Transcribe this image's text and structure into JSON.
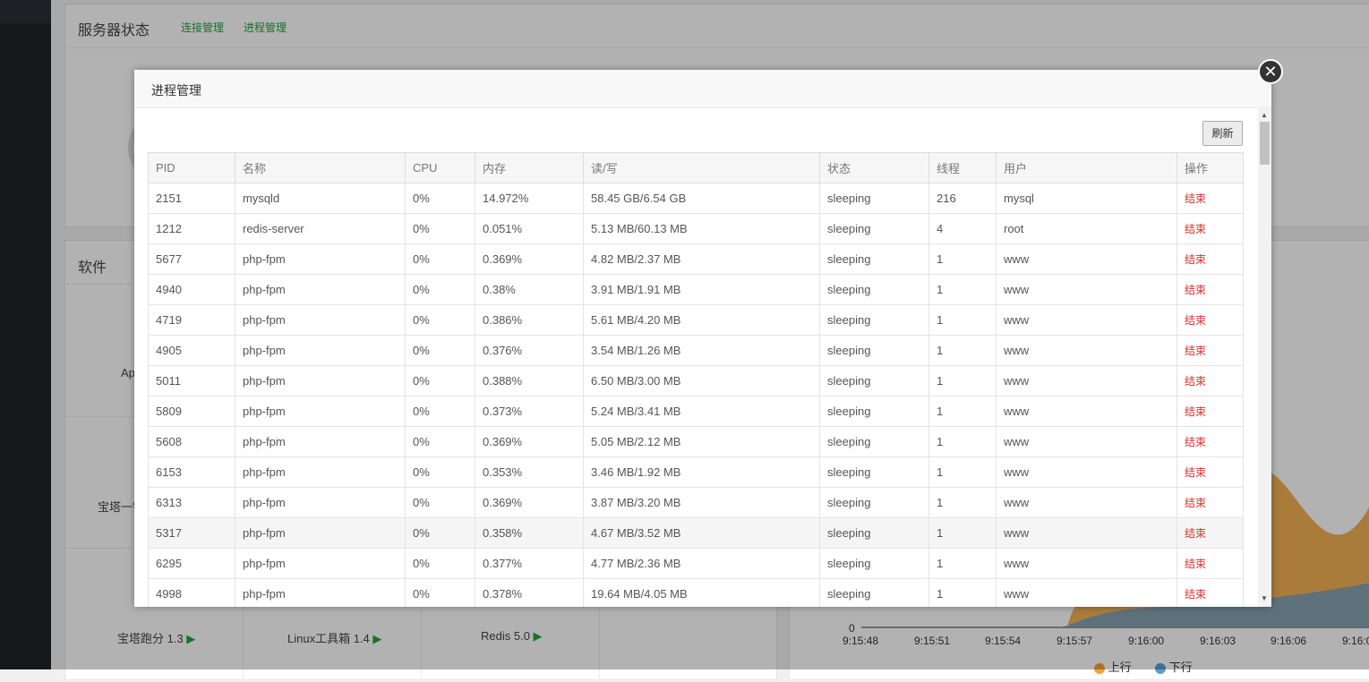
{
  "background": {
    "server_status_title": "服务器状态",
    "links": [
      "连接管理",
      "进程管理"
    ],
    "software_title": "软件",
    "software_items": [
      "宝塔跑分 1.3",
      "Linux工具箱 1.4",
      "Redis 5.0"
    ],
    "partial_labels": [
      "Ap",
      "宝塔一键"
    ],
    "chart": {
      "x_ticks": [
        "9:15:48",
        "9:15:51",
        "9:15:54",
        "9:15:57",
        "9:16:00",
        "9:16:03",
        "9:16:06",
        "9:16:0"
      ],
      "y_zero": "0",
      "legend": [
        "上行",
        "下行"
      ],
      "colors": {
        "up": "#f0a43a",
        "down": "#5b9bd5"
      }
    }
  },
  "modal": {
    "title": "进程管理",
    "refresh_label": "刷新",
    "close_icon": "close-icon",
    "columns": [
      "PID",
      "名称",
      "CPU",
      "内存",
      "读/写",
      "状态",
      "线程",
      "用户",
      "操作"
    ],
    "rows": [
      {
        "pid": "2151",
        "name": "mysqld",
        "cpu": "0%",
        "mem": "14.972%",
        "io": "58.45 GB/6.54 GB",
        "state": "sleeping",
        "threads": "216",
        "user": "mysql",
        "action": "结束"
      },
      {
        "pid": "1212",
        "name": "redis-server",
        "cpu": "0%",
        "mem": "0.051%",
        "io": "5.13 MB/60.13 MB",
        "state": "sleeping",
        "threads": "4",
        "user": "root",
        "action": "结束"
      },
      {
        "pid": "5677",
        "name": "php-fpm",
        "cpu": "0%",
        "mem": "0.369%",
        "io": "4.82 MB/2.37 MB",
        "state": "sleeping",
        "threads": "1",
        "user": "www",
        "action": "结束"
      },
      {
        "pid": "4940",
        "name": "php-fpm",
        "cpu": "0%",
        "mem": "0.38%",
        "io": "3.91 MB/1.91 MB",
        "state": "sleeping",
        "threads": "1",
        "user": "www",
        "action": "结束"
      },
      {
        "pid": "4719",
        "name": "php-fpm",
        "cpu": "0%",
        "mem": "0.386%",
        "io": "5.61 MB/4.20 MB",
        "state": "sleeping",
        "threads": "1",
        "user": "www",
        "action": "结束"
      },
      {
        "pid": "4905",
        "name": "php-fpm",
        "cpu": "0%",
        "mem": "0.376%",
        "io": "3.54 MB/1.26 MB",
        "state": "sleeping",
        "threads": "1",
        "user": "www",
        "action": "结束"
      },
      {
        "pid": "5011",
        "name": "php-fpm",
        "cpu": "0%",
        "mem": "0.388%",
        "io": "6.50 MB/3.00 MB",
        "state": "sleeping",
        "threads": "1",
        "user": "www",
        "action": "结束"
      },
      {
        "pid": "5809",
        "name": "php-fpm",
        "cpu": "0%",
        "mem": "0.373%",
        "io": "5.24 MB/3.41 MB",
        "state": "sleeping",
        "threads": "1",
        "user": "www",
        "action": "结束"
      },
      {
        "pid": "5608",
        "name": "php-fpm",
        "cpu": "0%",
        "mem": "0.369%",
        "io": "5.05 MB/2.12 MB",
        "state": "sleeping",
        "threads": "1",
        "user": "www",
        "action": "结束"
      },
      {
        "pid": "6153",
        "name": "php-fpm",
        "cpu": "0%",
        "mem": "0.353%",
        "io": "3.46 MB/1.92 MB",
        "state": "sleeping",
        "threads": "1",
        "user": "www",
        "action": "结束"
      },
      {
        "pid": "6313",
        "name": "php-fpm",
        "cpu": "0%",
        "mem": "0.369%",
        "io": "3.87 MB/3.20 MB",
        "state": "sleeping",
        "threads": "1",
        "user": "www",
        "action": "结束"
      },
      {
        "pid": "5317",
        "name": "php-fpm",
        "cpu": "0%",
        "mem": "0.358%",
        "io": "4.67 MB/3.52 MB",
        "state": "sleeping",
        "threads": "1",
        "user": "www",
        "action": "结束"
      },
      {
        "pid": "6295",
        "name": "php-fpm",
        "cpu": "0%",
        "mem": "0.377%",
        "io": "4.77 MB/2.36 MB",
        "state": "sleeping",
        "threads": "1",
        "user": "www",
        "action": "结束"
      },
      {
        "pid": "4998",
        "name": "php-fpm",
        "cpu": "0%",
        "mem": "0.378%",
        "io": "19.64 MB/4.05 MB",
        "state": "sleeping",
        "threads": "1",
        "user": "www",
        "action": "结束"
      }
    ]
  }
}
